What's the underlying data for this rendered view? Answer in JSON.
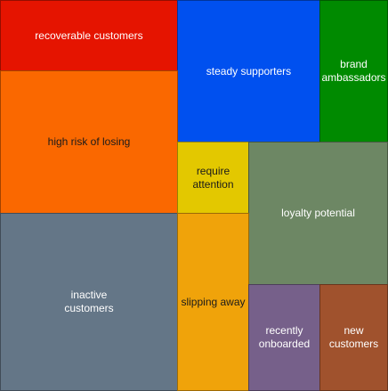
{
  "segments": [
    {
      "label": "recoverable customers",
      "color": "#e51400"
    },
    {
      "label": "steady supporters",
      "color": "#0050ef"
    },
    {
      "label": "brand\nambassadors",
      "color": "#008a00"
    },
    {
      "label": "high risk of losing",
      "color": "#fa6800"
    },
    {
      "label": "require\nattention",
      "color": "#e3c800"
    },
    {
      "label": "loyalty potential",
      "color": "#6d8764"
    },
    {
      "label": "inactive\ncustomers",
      "color": "#647687"
    },
    {
      "label": "slipping away",
      "color": "#f0a30a"
    },
    {
      "label": "recently\nonboarded",
      "color": "#76608a"
    },
    {
      "label": "new\ncustomers",
      "color": "#a0522d"
    }
  ]
}
